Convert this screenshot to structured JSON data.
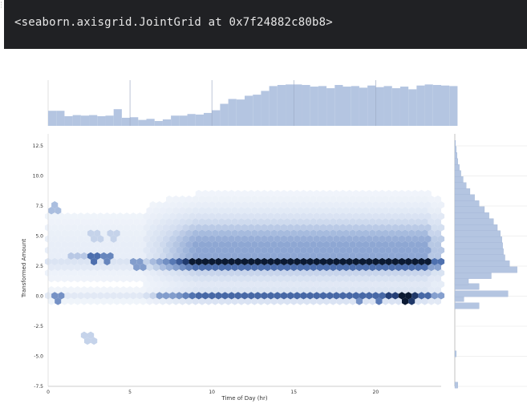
{
  "output": {
    "text": "<seaborn.axisgrid.JointGrid at 0x7f24882c80b8>"
  },
  "chart_data": {
    "type": "hexbin",
    "xlabel": "Time of Day (hr)",
    "ylabel": "Transformed Amount",
    "xlim": [
      0,
      24
    ],
    "ylim": [
      -7.5,
      13.5
    ],
    "x_ticks": [
      0,
      5,
      10,
      15,
      20
    ],
    "y_ticks": [
      -7.5,
      -5.0,
      -2.5,
      0.0,
      2.5,
      5.0,
      7.5,
      10.0,
      12.5
    ],
    "x_tick_labels": [
      "0",
      "5",
      "10",
      "15",
      "20"
    ],
    "y_tick_labels": [
      "-7.5",
      "-5.0",
      "-2.5",
      "0.0",
      "2.5",
      "5.0",
      "7.5",
      "10.0",
      "12.5"
    ],
    "colors": {
      "hex_light": "#f3f6fb",
      "hex_dark": "#0b1a33",
      "hist": "#b4c5e1",
      "hist_edge": "#9aaed0",
      "grid": "#e2e2e2"
    },
    "marginal_x": {
      "bin_width_hr": 0.5,
      "counts": [
        28,
        28,
        18,
        20,
        19,
        20,
        18,
        19,
        31,
        15,
        16,
        11,
        13,
        9,
        12,
        19,
        19,
        22,
        21,
        24,
        29,
        41,
        50,
        49,
        56,
        58,
        65,
        74,
        76,
        77,
        77,
        76,
        73,
        74,
        70,
        76,
        73,
        74,
        71,
        75,
        72,
        74,
        70,
        73,
        68,
        75,
        77,
        76,
        75,
        74
      ],
      "ymax": 85
    },
    "marginal_y": {
      "bins": [
        {
          "y": -7.4,
          "count": 4
        },
        {
          "y": -4.8,
          "count": 2
        },
        {
          "y": -0.8,
          "count": 32
        },
        {
          "y": -0.2,
          "count": 12
        },
        {
          "y": 0.2,
          "count": 70
        },
        {
          "y": 0.8,
          "count": 32
        },
        {
          "y": 1.2,
          "count": 18
        },
        {
          "y": 1.7,
          "count": 48
        },
        {
          "y": 2.2,
          "count": 82
        },
        {
          "y": 2.7,
          "count": 72
        },
        {
          "y": 3.2,
          "count": 66
        },
        {
          "y": 3.7,
          "count": 64
        },
        {
          "y": 4.2,
          "count": 63
        },
        {
          "y": 4.7,
          "count": 62
        },
        {
          "y": 5.2,
          "count": 60
        },
        {
          "y": 5.7,
          "count": 56
        },
        {
          "y": 6.2,
          "count": 51
        },
        {
          "y": 6.7,
          "count": 45
        },
        {
          "y": 7.2,
          "count": 39
        },
        {
          "y": 7.7,
          "count": 32
        },
        {
          "y": 8.2,
          "count": 26
        },
        {
          "y": 8.7,
          "count": 20
        },
        {
          "y": 9.2,
          "count": 15
        },
        {
          "y": 9.7,
          "count": 11
        },
        {
          "y": 10.2,
          "count": 8
        },
        {
          "y": 10.7,
          "count": 6
        },
        {
          "y": 11.2,
          "count": 4
        },
        {
          "y": 11.7,
          "count": 3
        },
        {
          "y": 12.2,
          "count": 2
        },
        {
          "y": 12.7,
          "count": 1
        }
      ],
      "xmax": 95
    },
    "hexbin": {
      "x_cells": 60,
      "hot_cells": [
        {
          "x": 2.8,
          "y": 3.3,
          "level": 0.75
        },
        {
          "x": 3.7,
          "y": 3.3,
          "level": 0.65
        },
        {
          "x": 2.5,
          "y": -3.4,
          "level": 0.3
        },
        {
          "x": 7.2,
          "y": 0.0,
          "level": 0.55
        },
        {
          "x": 9.7,
          "y": -7.2,
          "level": 0.15
        },
        {
          "x": 7.8,
          "y": -7.2,
          "level": 0.08
        },
        {
          "x": 21.7,
          "y": 0.0,
          "level": 1.0
        },
        {
          "x": 21.2,
          "y": 0.0,
          "level": 0.9
        },
        {
          "x": 22.1,
          "y": 0.0,
          "level": 0.92
        },
        {
          "x": 20.3,
          "y": 0.0,
          "level": 0.7
        },
        {
          "x": 18.9,
          "y": 0.0,
          "level": 0.6
        },
        {
          "x": 5.5,
          "y": 2.7,
          "level": 0.55
        },
        {
          "x": 0.5,
          "y": 0.0,
          "level": 0.6
        },
        {
          "x": 0.5,
          "y": 7.2,
          "level": 0.4
        },
        {
          "x": 1.8,
          "y": 3.3,
          "level": 0.35
        },
        {
          "x": 2.9,
          "y": 5.0,
          "level": 0.3
        },
        {
          "x": 4.0,
          "y": 5.0,
          "level": 0.3
        }
      ]
    }
  }
}
